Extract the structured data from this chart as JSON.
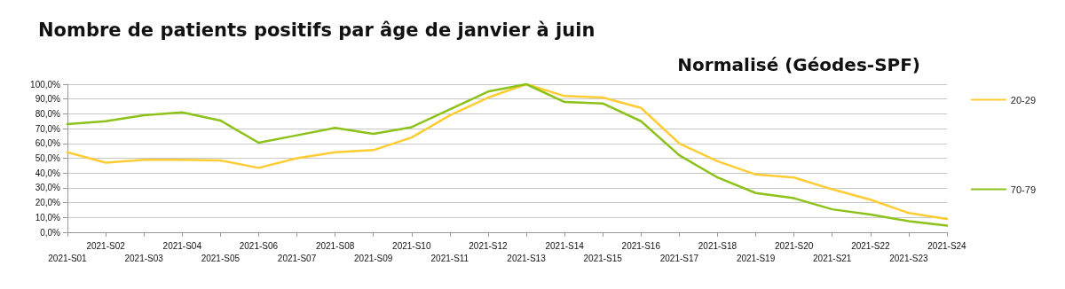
{
  "chart_data": {
    "type": "line",
    "title": "Nombre de patients positifs par âge de janvier à juin",
    "subtitle": "Normalisé (Géodes-SPF)",
    "categories": [
      "2021-S01",
      "2021-S02",
      "2021-S03",
      "2021-S04",
      "2021-S05",
      "2021-S06",
      "2021-S07",
      "2021-S08",
      "2021-S09",
      "2021-S10",
      "2021-S11",
      "2021-S12",
      "2021-S13",
      "2021-S14",
      "2021-S15",
      "2021-S16",
      "2021-S17",
      "2021-S18",
      "2021-S19",
      "2021-S20",
      "2021-S21",
      "2021-S22",
      "2021-S23",
      "2021-S24"
    ],
    "series": [
      {
        "name": "20-29",
        "color": "#ffcc33",
        "values": [
          54,
          47,
          49,
          49,
          48.5,
          43.5,
          50,
          54,
          55.5,
          64,
          79,
          91,
          100,
          92,
          91,
          84,
          60,
          48,
          39,
          37,
          29,
          22,
          13,
          9
        ]
      },
      {
        "name": "70-79",
        "color": "#8cc21a",
        "values": [
          73,
          75,
          79,
          81,
          75.5,
          60.5,
          65.5,
          70.5,
          66.5,
          71,
          83,
          95,
          100,
          88,
          87,
          75,
          52,
          37,
          26.5,
          23,
          15.5,
          12,
          7.5,
          4.5
        ]
      }
    ],
    "ylim": [
      0,
      100
    ],
    "yticks": [
      {
        "value": 0,
        "label": "0,0%"
      },
      {
        "value": 10,
        "label": "10,0%"
      },
      {
        "value": 20,
        "label": "20,0%"
      },
      {
        "value": 30,
        "label": "30,0%"
      },
      {
        "value": 40,
        "label": "40,0%"
      },
      {
        "value": 50,
        "label": "50,0%"
      },
      {
        "value": 60,
        "label": "60,0%"
      },
      {
        "value": 70,
        "label": "70,0%"
      },
      {
        "value": 80,
        "label": "80,0%"
      },
      {
        "value": 90,
        "label": "90,0%"
      },
      {
        "value": 100,
        "label": "100,0%"
      }
    ],
    "grid": "y",
    "legend": "right",
    "marker": "none",
    "line_style": "solid"
  }
}
